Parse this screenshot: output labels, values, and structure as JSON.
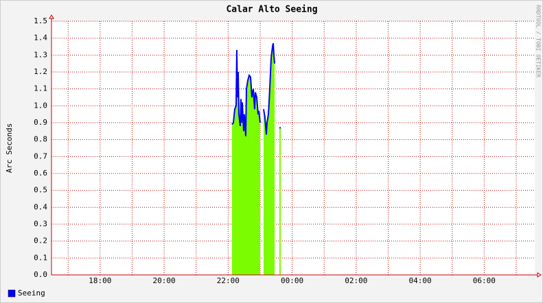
{
  "chart_data": {
    "type": "area-line",
    "title": "Calar Alto Seeing",
    "y_label": "Arc Seconds",
    "watermark": "RRDTOOL / TOBI OETIKER",
    "x": [
      22.12,
      22.163,
      22.206,
      22.249,
      22.27,
      22.292,
      22.313,
      22.335,
      22.378,
      22.399,
      22.421,
      22.442,
      22.485,
      22.506,
      22.549,
      22.571,
      22.614,
      22.657,
      22.7,
      22.742,
      22.785,
      22.828,
      22.85,
      22.893,
      22.936,
      22.957,
      23.0,
      23.043,
      23.107,
      23.15,
      23.193,
      23.215,
      23.258,
      23.3,
      23.343,
      23.386,
      23.408,
      23.429,
      23.451,
      23.494,
      23.622,
      23.665
    ],
    "series": [
      {
        "name": "Seeing",
        "color": "#0000ff",
        "area_color": "#7cfc00",
        "values": [
          0.89,
          0.9,
          0.98,
          1.0,
          1.33,
          1.05,
          1.2,
          0.95,
          0.88,
          1.04,
          0.9,
          1.02,
          0.85,
          0.95,
          0.82,
          1.1,
          1.15,
          1.18,
          1.17,
          1.05,
          1.1,
          0.98,
          1.08,
          1.05,
          0.95,
          0.97,
          0.9,
          null,
          0.98,
          0.93,
          0.83,
          0.9,
          0.95,
          1.1,
          1.28,
          1.35,
          1.37,
          1.3,
          1.25,
          null,
          0.87,
          null
        ]
      }
    ],
    "xlim": [
      16.48,
      31.58
    ],
    "xticks": [
      {
        "value": 18,
        "label": "18:00"
      },
      {
        "value": 20,
        "label": "20:00"
      },
      {
        "value": 22,
        "label": "22:00"
      },
      {
        "value": 24,
        "label": "00:00"
      },
      {
        "value": 26,
        "label": "02:00"
      },
      {
        "value": 28,
        "label": "04:00"
      },
      {
        "value": 30,
        "label": "06:00"
      }
    ],
    "x_minor_ticks": [
      17,
      19,
      21,
      23,
      25,
      27,
      29,
      31
    ],
    "ylim": [
      0,
      1.5
    ],
    "yticks": [
      {
        "value": 0,
        "label": "0.0"
      },
      0.1,
      0.2,
      0.3,
      0.4,
      0.5,
      0.6,
      0.7,
      0.8,
      0.9,
      {
        "value": 1,
        "label": "1.0"
      },
      1.1,
      1.2,
      1.3,
      1.4,
      1.5
    ],
    "grid": true,
    "legend": "bottom-left"
  }
}
